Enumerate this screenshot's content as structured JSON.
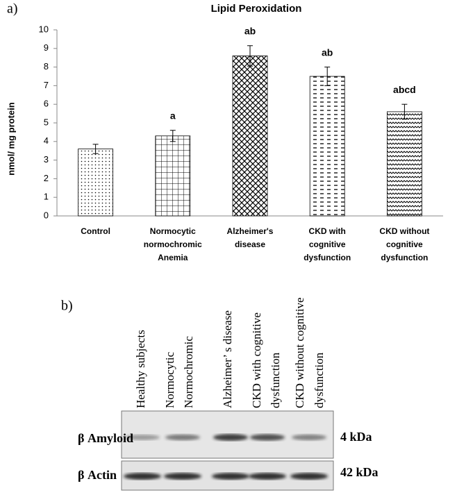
{
  "panel_a_label": "a)",
  "chart_data": {
    "type": "bar",
    "title": "Lipid Peroxidation",
    "ylabel": "nmol/ mg protein",
    "categories": [
      [
        "Control"
      ],
      [
        "Normocytic",
        "normochromic",
        "Anemia"
      ],
      [
        "Alzheimer's",
        "disease"
      ],
      [
        "CKD with",
        "cognitive",
        "dysfunction"
      ],
      [
        "CKD without",
        "cognitive",
        "dysfunction"
      ]
    ],
    "values": [
      3.6,
      4.3,
      8.6,
      7.5,
      5.6
    ],
    "errors": [
      0.25,
      0.3,
      0.55,
      0.5,
      0.4
    ],
    "annotations": [
      null,
      "a",
      "ab",
      "ab",
      "abcd"
    ],
    "color": "#000000",
    "ylim": [
      0,
      10
    ],
    "yticks": [
      0,
      1,
      2,
      3,
      4,
      5,
      6,
      7,
      8,
      9,
      10
    ],
    "grid": false
  },
  "blot": {
    "panel_label": "b)",
    "lanes": [
      [
        "Healthy subjects"
      ],
      [
        "Normocytic",
        "Normochromic"
      ],
      [
        "Alzheimer’ s disease"
      ],
      [
        "CKD with cognitive",
        "dysfunction"
      ],
      [
        "CKD without cognitive",
        "dysfunction"
      ]
    ],
    "rows": [
      {
        "name": "β Amyloid",
        "size": "4 kDa"
      },
      {
        "name": "β Actin",
        "size": "42 kDa"
      }
    ]
  }
}
